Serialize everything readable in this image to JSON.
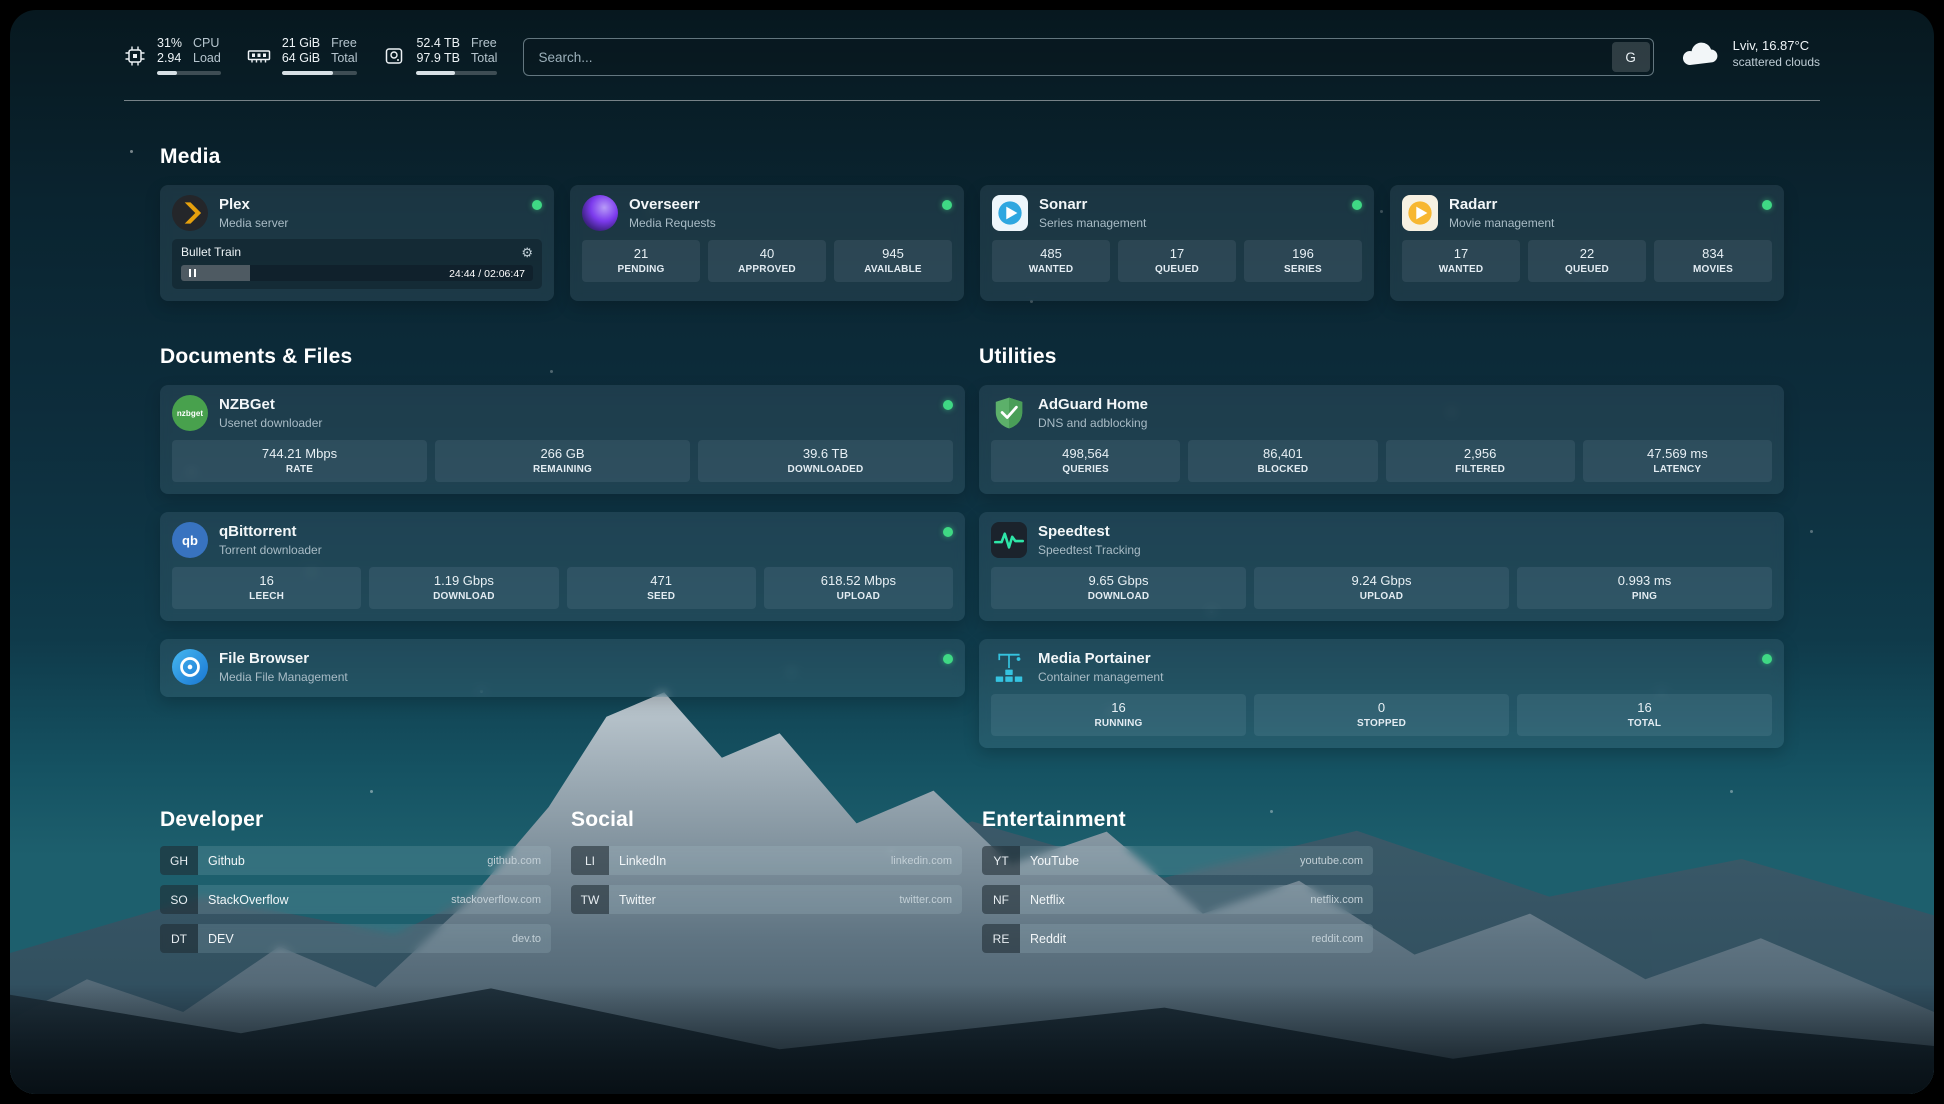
{
  "topbar": {
    "cpu": {
      "v1": "31%",
      "v2": "2.94",
      "l1": "CPU",
      "l2": "Load",
      "progress": 31
    },
    "ram": {
      "v1": "21 GiB",
      "v2": "64 GiB",
      "l1": "Free",
      "l2": "Total",
      "progress": 67
    },
    "disk": {
      "v1": "52.4 TB",
      "v2": "97.9 TB",
      "l1": "Free",
      "l2": "Total",
      "progress": 47
    },
    "search": {
      "placeholder": "Search...",
      "button": "G"
    },
    "weather": {
      "location": "Lviv, 16.87°C",
      "condition": "scattered clouds"
    }
  },
  "icons": {
    "nzbget_label": "nzbget",
    "qb_label": "qb"
  },
  "media": {
    "title": "Media",
    "plex": {
      "name": "Plex",
      "sub": "Media server",
      "np_title": "Bullet Train",
      "np_time": "24:44 / 02:06:47",
      "np_progress": 19.5
    },
    "overseerr": {
      "name": "Overseerr",
      "sub": "Media Requests",
      "stats": [
        {
          "v": "21",
          "l": "PENDING"
        },
        {
          "v": "40",
          "l": "APPROVED"
        },
        {
          "v": "945",
          "l": "AVAILABLE"
        }
      ]
    },
    "sonarr": {
      "name": "Sonarr",
      "sub": "Series management",
      "stats": [
        {
          "v": "485",
          "l": "WANTED"
        },
        {
          "v": "17",
          "l": "QUEUED"
        },
        {
          "v": "196",
          "l": "SERIES"
        }
      ]
    },
    "radarr": {
      "name": "Radarr",
      "sub": "Movie management",
      "stats": [
        {
          "v": "17",
          "l": "WANTED"
        },
        {
          "v": "22",
          "l": "QUEUED"
        },
        {
          "v": "834",
          "l": "MOVIES"
        }
      ]
    }
  },
  "docs": {
    "title": "Documents & Files",
    "nzbget": {
      "name": "NZBGet",
      "sub": "Usenet downloader",
      "stats": [
        {
          "v": "744.21 Mbps",
          "l": "RATE"
        },
        {
          "v": "266 GB",
          "l": "REMAINING"
        },
        {
          "v": "39.6 TB",
          "l": "DOWNLOADED"
        }
      ]
    },
    "qbittorrent": {
      "name": "qBittorrent",
      "sub": "Torrent downloader",
      "stats": [
        {
          "v": "16",
          "l": "LEECH"
        },
        {
          "v": "1.19 Gbps",
          "l": "DOWNLOAD"
        },
        {
          "v": "471",
          "l": "SEED"
        },
        {
          "v": "618.52 Mbps",
          "l": "UPLOAD"
        }
      ]
    },
    "filebrowser": {
      "name": "File Browser",
      "sub": "Media File Management"
    }
  },
  "utils": {
    "title": "Utilities",
    "adguard": {
      "name": "AdGuard Home",
      "sub": "DNS and adblocking",
      "stats": [
        {
          "v": "498,564",
          "l": "QUERIES"
        },
        {
          "v": "86,401",
          "l": "BLOCKED"
        },
        {
          "v": "2,956",
          "l": "FILTERED"
        },
        {
          "v": "47.569 ms",
          "l": "LATENCY"
        }
      ]
    },
    "speedtest": {
      "name": "Speedtest",
      "sub": "Speedtest Tracking",
      "stats": [
        {
          "v": "9.65 Gbps",
          "l": "DOWNLOAD"
        },
        {
          "v": "9.24 Gbps",
          "l": "UPLOAD"
        },
        {
          "v": "0.993 ms",
          "l": "PING"
        }
      ]
    },
    "portainer": {
      "name": "Media Portainer",
      "sub": "Container management",
      "stats": [
        {
          "v": "16",
          "l": "RUNNING"
        },
        {
          "v": "0",
          "l": "STOPPED"
        },
        {
          "v": "16",
          "l": "TOTAL"
        }
      ]
    }
  },
  "bookmarks": {
    "developer": {
      "title": "Developer",
      "items": [
        {
          "abbr": "GH",
          "name": "Github",
          "url": "github.com"
        },
        {
          "abbr": "SO",
          "name": "StackOverflow",
          "url": "stackoverflow.com"
        },
        {
          "abbr": "DT",
          "name": "DEV",
          "url": "dev.to"
        }
      ]
    },
    "social": {
      "title": "Social",
      "items": [
        {
          "abbr": "LI",
          "name": "LinkedIn",
          "url": "linkedin.com"
        },
        {
          "abbr": "TW",
          "name": "Twitter",
          "url": "twitter.com"
        }
      ]
    },
    "entertainment": {
      "title": "Entertainment",
      "items": [
        {
          "abbr": "YT",
          "name": "YouTube",
          "url": "youtube.com"
        },
        {
          "abbr": "NF",
          "name": "Netflix",
          "url": "netflix.com"
        },
        {
          "abbr": "RE",
          "name": "Reddit",
          "url": "reddit.com"
        }
      ]
    }
  },
  "colors": {
    "status_online": "#3fd884",
    "plex_gold": "#e5a00d",
    "accent_teal": "#35c3e0"
  }
}
